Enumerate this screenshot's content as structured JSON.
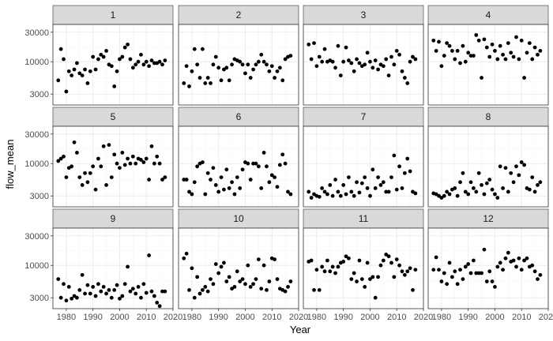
{
  "chart_data": {
    "type": "scatter",
    "layout": "facet-grid",
    "xlabel": "Year",
    "ylabel": "flow_mean",
    "y_scale": "log",
    "x_range": [
      1975,
      2020
    ],
    "y_range": [
      2000,
      40000
    ],
    "x_ticks": [
      1980,
      1990,
      2000,
      2010,
      2020
    ],
    "x_tick_labels": [
      "1980",
      "1990",
      "2000",
      "2010",
      "2020"
    ],
    "y_ticks": [
      3000,
      10000,
      30000
    ],
    "y_tick_labels": [
      "3000",
      "10000",
      "30000"
    ],
    "grid": true,
    "point_color": "#000000",
    "panel_background": "#ffffff",
    "strip_color": "#d9d9d9",
    "grid_color": "#ebebeb",
    "panels": [
      {
        "label": "1",
        "x": [
          1977,
          1978,
          1979,
          1980,
          1981,
          1982,
          1983,
          1984,
          1985,
          1986,
          1987,
          1988,
          1989,
          1990,
          1991,
          1992,
          1993,
          1994,
          1995,
          1996,
          1997,
          1998,
          1999,
          2000,
          2001,
          2002,
          2003,
          2004,
          2005,
          2006,
          2007,
          2008,
          2009,
          2010,
          2011,
          2012,
          2013,
          2014,
          2015,
          2016,
          2017
        ],
        "y": [
          5000,
          16000,
          11000,
          3300,
          7000,
          6000,
          7500,
          9500,
          6500,
          6000,
          7500,
          4500,
          7000,
          12000,
          7500,
          11000,
          13000,
          12000,
          15000,
          9000,
          8500,
          4000,
          7000,
          11000,
          12000,
          17000,
          19000,
          11000,
          8000,
          9000,
          10000,
          13000,
          9000,
          10000,
          8500,
          10500,
          9500,
          9500,
          10000,
          9000,
          10500
        ]
      },
      {
        "label": "2",
        "x": [
          1977,
          1978,
          1979,
          1980,
          1981,
          1982,
          1983,
          1984,
          1985,
          1986,
          1987,
          1988,
          1989,
          1990,
          1991,
          1992,
          1993,
          1994,
          1995,
          1996,
          1997,
          1998,
          1999,
          2000,
          2001,
          2002,
          2003,
          2004,
          2005,
          2006,
          2007,
          2008,
          2009,
          2010,
          2011,
          2012,
          2013,
          2014,
          2015,
          2016,
          2017
        ],
        "y": [
          4500,
          8500,
          4000,
          7000,
          16000,
          9000,
          5500,
          16000,
          4500,
          5500,
          4500,
          9000,
          12000,
          8000,
          5000,
          7500,
          8000,
          5000,
          9000,
          11000,
          10500,
          10000,
          9000,
          6500,
          9000,
          5500,
          7500,
          9000,
          10000,
          13000,
          10000,
          9000,
          7000,
          8500,
          5500,
          7000,
          8000,
          5000,
          11000,
          12000,
          12500
        ]
      },
      {
        "label": "3",
        "x": [
          1977,
          1978,
          1979,
          1980,
          1981,
          1982,
          1983,
          1984,
          1985,
          1986,
          1987,
          1988,
          1989,
          1990,
          1991,
          1992,
          1993,
          1994,
          1995,
          1996,
          1997,
          1998,
          1999,
          2000,
          2001,
          2002,
          2003,
          2004,
          2005,
          2006,
          2007,
          2008,
          2009,
          2010,
          2011,
          2012,
          2013,
          2014,
          2015,
          2016,
          2017
        ],
        "y": [
          19000,
          11000,
          20000,
          8500,
          12000,
          10000,
          16000,
          10000,
          10500,
          10000,
          8000,
          18000,
          6000,
          10000,
          17000,
          10500,
          9500,
          7000,
          11000,
          9500,
          8500,
          9000,
          14000,
          10000,
          8000,
          10500,
          7500,
          9000,
          8500,
          11000,
          6000,
          12000,
          9000,
          15000,
          13000,
          7000,
          5500,
          4500,
          10000,
          12000,
          11000
        ]
      },
      {
        "label": "4",
        "x": [
          1977,
          1978,
          1979,
          1980,
          1981,
          1982,
          1983,
          1984,
          1985,
          1986,
          1987,
          1988,
          1989,
          1990,
          1991,
          1992,
          1993,
          1994,
          1995,
          1996,
          1997,
          1998,
          1999,
          2000,
          2001,
          2002,
          2003,
          2004,
          2005,
          2006,
          2007,
          2008,
          2009,
          2010,
          2011,
          2012,
          2013,
          2014,
          2015,
          2016,
          2017
        ],
        "y": [
          22000,
          15000,
          21000,
          8500,
          12500,
          20000,
          18000,
          15000,
          11000,
          15000,
          9500,
          18000,
          10000,
          14000,
          12500,
          12500,
          27000,
          22000,
          5500,
          23000,
          17000,
          12000,
          19000,
          15000,
          11000,
          18000,
          13000,
          11000,
          20000,
          14000,
          12000,
          25000,
          11000,
          22000,
          5500,
          14000,
          20000,
          11000,
          17000,
          13000,
          15000
        ]
      },
      {
        "label": "5",
        "x": [
          1977,
          1978,
          1979,
          1980,
          1981,
          1982,
          1983,
          1984,
          1985,
          1986,
          1987,
          1988,
          1989,
          1990,
          1991,
          1992,
          1993,
          1994,
          1995,
          1996,
          1997,
          1998,
          1999,
          2000,
          2001,
          2002,
          2003,
          2004,
          2005,
          2006,
          2007,
          2008,
          2009,
          2010,
          2011,
          2012,
          2013,
          2014,
          2015,
          2016,
          2017
        ],
        "y": [
          11000,
          12000,
          13000,
          6000,
          8500,
          9000,
          22000,
          15000,
          6000,
          4500,
          7000,
          5000,
          7000,
          9000,
          3800,
          12000,
          9000,
          19000,
          4500,
          20000,
          6000,
          14000,
          10000,
          8500,
          15000,
          9500,
          12000,
          10000,
          13000,
          10000,
          12000,
          11500,
          10500,
          12000,
          5500,
          19000,
          10000,
          13000,
          10000,
          5500,
          6000
        ]
      },
      {
        "label": "6",
        "x": [
          1977,
          1978,
          1979,
          1980,
          1981,
          1982,
          1983,
          1984,
          1985,
          1986,
          1987,
          1988,
          1989,
          1990,
          1991,
          1992,
          1993,
          1994,
          1995,
          1996,
          1997,
          1998,
          1999,
          2000,
          2001,
          2002,
          2003,
          2004,
          2005,
          2006,
          2007,
          2008,
          2009,
          2010,
          2011,
          2012,
          2013,
          2014,
          2015,
          2016,
          2017
        ],
        "y": [
          5500,
          5500,
          3500,
          3200,
          5000,
          9000,
          10000,
          10500,
          3200,
          7000,
          5500,
          8500,
          4500,
          3500,
          6000,
          3800,
          8000,
          4000,
          5000,
          3200,
          6000,
          4000,
          8000,
          10500,
          10000,
          5500,
          10000,
          10000,
          9000,
          4000,
          15000,
          9000,
          5000,
          6500,
          6000,
          4200,
          9500,
          14000,
          10000,
          3500,
          3200
        ]
      },
      {
        "label": "7",
        "x": [
          1977,
          1978,
          1979,
          1980,
          1981,
          1982,
          1983,
          1984,
          1985,
          1986,
          1987,
          1988,
          1989,
          1990,
          1991,
          1992,
          1993,
          1994,
          1995,
          1996,
          1997,
          1998,
          1999,
          2000,
          2001,
          2002,
          2003,
          2004,
          2005,
          2006,
          2007,
          2008,
          2009,
          2010,
          2011,
          2012,
          2013,
          2014,
          2015,
          2016,
          2017
        ],
        "y": [
          3500,
          2800,
          3200,
          3000,
          2900,
          4000,
          3500,
          3200,
          4500,
          3000,
          5500,
          3500,
          3000,
          4500,
          3200,
          6000,
          3500,
          3000,
          5000,
          3400,
          4800,
          6000,
          4000,
          3000,
          8000,
          4000,
          6000,
          4500,
          5000,
          3500,
          3500,
          6000,
          13500,
          3800,
          9000,
          4000,
          7000,
          12000,
          7500,
          3500,
          3300
        ]
      },
      {
        "label": "8",
        "x": [
          1977,
          1978,
          1979,
          1980,
          1981,
          1982,
          1983,
          1984,
          1985,
          1986,
          1987,
          1988,
          1989,
          1990,
          1991,
          1992,
          1993,
          1994,
          1995,
          1996,
          1997,
          1998,
          1999,
          2000,
          2001,
          2002,
          2003,
          2004,
          2005,
          2006,
          2007,
          2008,
          2009,
          2010,
          2011,
          2012,
          2013,
          2014,
          2015,
          2016,
          2017
        ],
        "y": [
          3300,
          3200,
          3000,
          2800,
          3000,
          3500,
          3200,
          3800,
          4000,
          3000,
          5000,
          7000,
          3500,
          3200,
          5000,
          4000,
          3500,
          7000,
          4500,
          3200,
          4800,
          5500,
          3800,
          3200,
          2800,
          9000,
          4000,
          8500,
          3500,
          7000,
          5000,
          9000,
          6500,
          10500,
          9500,
          4000,
          3800,
          6000,
          3500,
          4500,
          5000
        ]
      },
      {
        "label": "9",
        "x": [
          1977,
          1978,
          1979,
          1980,
          1981,
          1982,
          1983,
          1984,
          1985,
          1986,
          1987,
          1988,
          1989,
          1990,
          1991,
          1992,
          1993,
          1994,
          1995,
          1996,
          1997,
          1998,
          1999,
          2000,
          2001,
          2002,
          2003,
          2004,
          2005,
          2006,
          2007,
          2008,
          2009,
          2010,
          2011,
          2012,
          2013,
          2014,
          2015,
          2016,
          2017
        ],
        "y": [
          6000,
          3000,
          5000,
          2700,
          4500,
          2900,
          3200,
          3000,
          4000,
          7000,
          3500,
          4800,
          3500,
          4500,
          3200,
          5000,
          3800,
          4500,
          3500,
          4000,
          3000,
          4000,
          4800,
          2900,
          3200,
          5000,
          9500,
          3800,
          4200,
          3500,
          4500,
          3000,
          5000,
          3600,
          14500,
          3800,
          3200,
          2500,
          2200,
          3800,
          3800
        ]
      },
      {
        "label": "10",
        "x": [
          1977,
          1978,
          1979,
          1980,
          1981,
          1982,
          1983,
          1984,
          1985,
          1986,
          1987,
          1988,
          1989,
          1990,
          1991,
          1992,
          1993,
          1994,
          1995,
          1996,
          1997,
          1998,
          1999,
          2000,
          2001,
          2002,
          2003,
          2004,
          2005,
          2006,
          2007,
          2008,
          2009,
          2010,
          2011,
          2012,
          2013,
          2014,
          2015,
          2016,
          2017
        ],
        "y": [
          13000,
          15500,
          4000,
          9000,
          3000,
          6500,
          3500,
          4000,
          4500,
          3800,
          6000,
          5000,
          10500,
          7500,
          9500,
          11000,
          5500,
          6500,
          4200,
          4500,
          8000,
          5500,
          6000,
          5000,
          10000,
          4500,
          5000,
          6000,
          12500,
          4200,
          10000,
          4000,
          5500,
          13000,
          12500,
          6000,
          4200,
          4000,
          3800,
          4500,
          5500
        ]
      },
      {
        "label": "11",
        "x": [
          1977,
          1978,
          1979,
          1980,
          1981,
          1982,
          1983,
          1984,
          1985,
          1986,
          1987,
          1988,
          1989,
          1990,
          1991,
          1992,
          1993,
          1994,
          1995,
          1996,
          1997,
          1998,
          1999,
          2000,
          2001,
          2002,
          2003,
          2004,
          2005,
          2006,
          2007,
          2008,
          2009,
          2010,
          2011,
          2012,
          2013,
          2014,
          2015,
          2016,
          2017
        ],
        "y": [
          11500,
          12000,
          4000,
          8500,
          4000,
          9500,
          8000,
          12000,
          8000,
          9500,
          7500,
          9500,
          11000,
          11500,
          14000,
          13000,
          6000,
          7500,
          5500,
          12000,
          6000,
          4500,
          11000,
          6000,
          6500,
          3000,
          6500,
          10000,
          12000,
          15000,
          14000,
          11000,
          6500,
          12500,
          10000,
          8000,
          7000,
          8000,
          9000,
          4000,
          8500
        ]
      },
      {
        "label": "12",
        "x": [
          1977,
          1978,
          1979,
          1980,
          1981,
          1982,
          1983,
          1984,
          1985,
          1986,
          1987,
          1988,
          1989,
          1990,
          1991,
          1992,
          1993,
          1994,
          1995,
          1996,
          1997,
          1998,
          1999,
          2000,
          2001,
          2002,
          2003,
          2004,
          2005,
          2006,
          2007,
          2008,
          2009,
          2010,
          2011,
          2012,
          2013,
          2014,
          2015,
          2016,
          2017
        ],
        "y": [
          8500,
          13500,
          8500,
          5500,
          7500,
          5000,
          11000,
          6500,
          8000,
          5000,
          8500,
          6000,
          9500,
          10500,
          7500,
          12000,
          7500,
          7500,
          7500,
          18000,
          5500,
          8000,
          5500,
          4500,
          9500,
          11000,
          8500,
          13000,
          16000,
          11500,
          12000,
          9500,
          13000,
          8500,
          12000,
          13000,
          9500,
          10000,
          8000,
          6000,
          7000
        ]
      }
    ]
  }
}
